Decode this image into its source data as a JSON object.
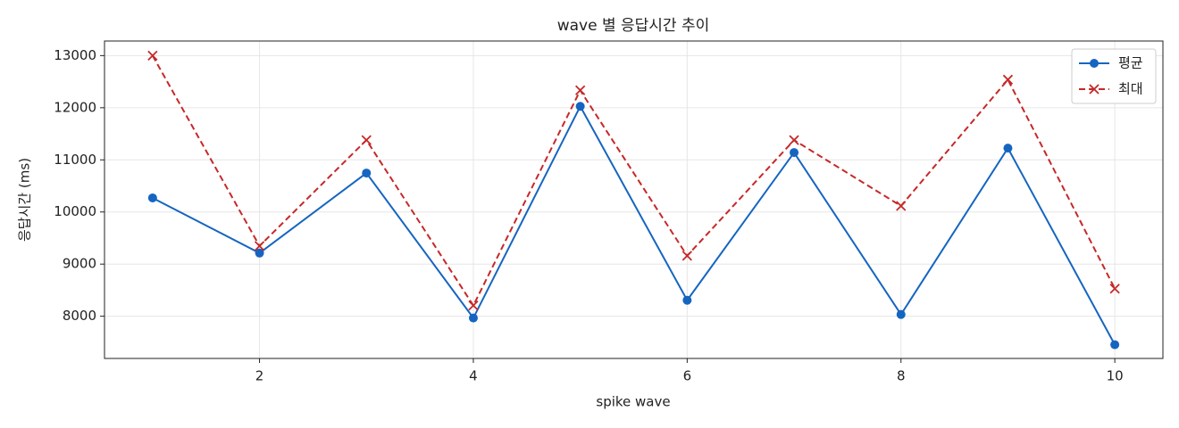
{
  "chart_data": {
    "type": "line",
    "title": "wave 별 응답시간 추이",
    "xlabel": "spike wave",
    "ylabel": "응답시간 (ms)",
    "x": [
      1,
      2,
      3,
      4,
      5,
      6,
      7,
      8,
      9,
      10
    ],
    "series": [
      {
        "name": "평균",
        "color": "#1565c0",
        "marker": "circle",
        "dash": "solid",
        "values": [
          10270,
          9212,
          10747,
          7966,
          12027,
          8307,
          11140,
          8034,
          11225,
          7454
        ]
      },
      {
        "name": "최대",
        "color": "#c62828",
        "marker": "x",
        "dash": "dashed",
        "values": [
          13000,
          9348,
          11379,
          8205,
          12334,
          9160,
          11379,
          10116,
          12539,
          8529
        ]
      }
    ],
    "xlim": [
      0.55,
      10.45
    ],
    "ylim": [
      7190,
      13280
    ],
    "xticks": [
      2,
      4,
      6,
      8,
      10
    ],
    "yticks": [
      8000,
      9000,
      10000,
      11000,
      12000,
      13000
    ],
    "grid": true,
    "legend": "upper right"
  }
}
